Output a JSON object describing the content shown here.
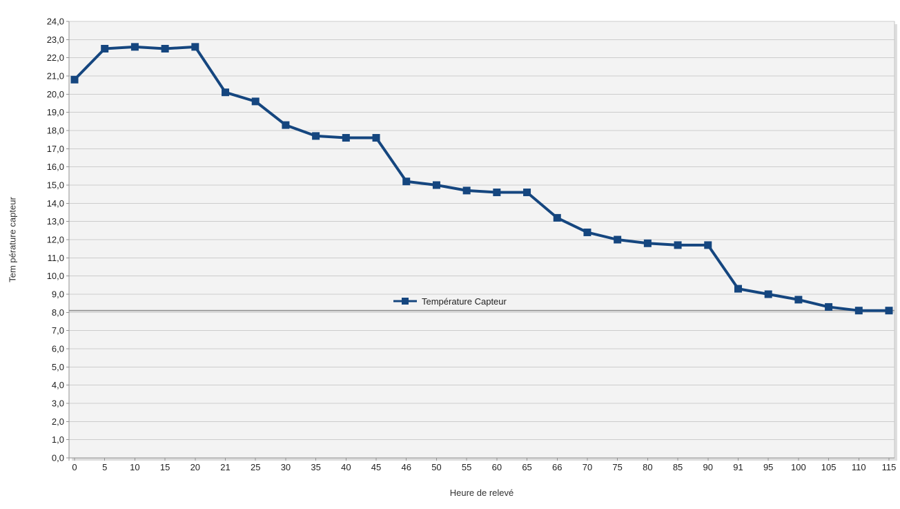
{
  "chart_data": {
    "type": "line",
    "title": "",
    "xlabel": "Heure de relevé",
    "ylabel": "Tem pérature capteur",
    "categories": [
      "0",
      "5",
      "10",
      "15",
      "20",
      "21",
      "25",
      "30",
      "35",
      "40",
      "45",
      "46",
      "50",
      "55",
      "60",
      "65",
      "66",
      "70",
      "75",
      "80",
      "85",
      "90",
      "91",
      "95",
      "100",
      "105",
      "110",
      "115"
    ],
    "series": [
      {
        "name": "Température Capteur",
        "marker": "square",
        "values": [
          20.8,
          22.5,
          22.6,
          22.5,
          22.6,
          20.1,
          19.6,
          18.3,
          17.7,
          17.6,
          17.6,
          15.2,
          15.0,
          14.7,
          14.6,
          14.6,
          13.2,
          12.4,
          12.0,
          11.8,
          11.7,
          11.7,
          9.3,
          9.0,
          8.7,
          8.3,
          8.1,
          8.1
        ]
      }
    ],
    "legend": {
      "entries": [
        "Température Capteur"
      ],
      "position": "inside-lower-center"
    },
    "ylim": [
      0,
      24
    ],
    "ytick_step": 1.0,
    "ytick_labels": [
      "0,0",
      "1,0",
      "2,0",
      "3,0",
      "4,0",
      "5,0",
      "6,0",
      "7,0",
      "8,0",
      "9,0",
      "10,0",
      "11,0",
      "12,0",
      "13,0",
      "14,0",
      "15,0",
      "16,0",
      "17,0",
      "18,0",
      "19,0",
      "20,0",
      "21,0",
      "22,0",
      "23,0",
      "24,0"
    ],
    "grid": true,
    "reference_line": {
      "value": 8.1,
      "color": "#9b9b9b"
    },
    "colors": {
      "series": "#15467F",
      "grid": "#cccccc",
      "plot_bg": "#f3f3f3",
      "plot_border": "#c6c6c6",
      "plot_shadow": "#dedede",
      "axis": "#919191",
      "text": "#1f1f1f"
    }
  }
}
